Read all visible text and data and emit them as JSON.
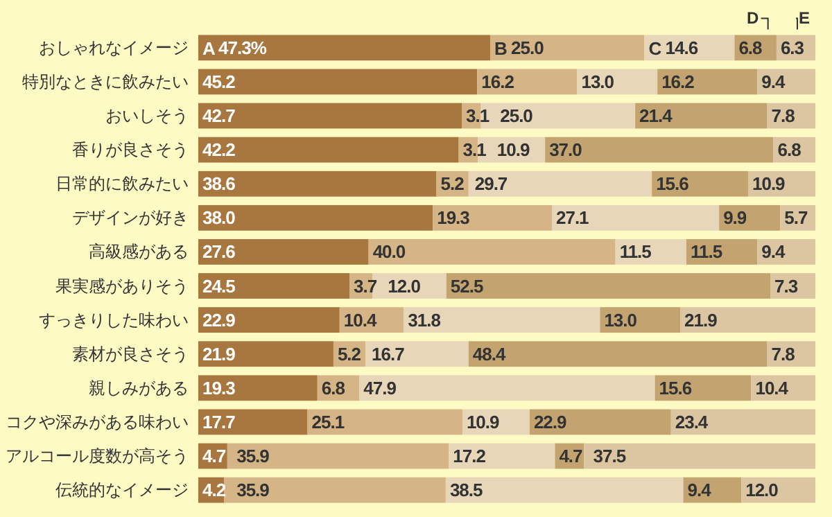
{
  "chart_data": {
    "type": "bar",
    "orientation": "horizontal",
    "stacked": true,
    "categories": [
      "おしゃれなイメージ",
      "特別なときに飲みたい",
      "おいしそう",
      "香りが良さそう",
      "日常的に飲みたい",
      "デザインが好き",
      "高級感がある",
      "果実感がありそう",
      "すっきりした味わい",
      "素材が良さそう",
      "親しみがある",
      "コクや深みがある味わい",
      "アルコール度数が高そう",
      "伝統的なイメージ"
    ],
    "series": [
      {
        "name": "A",
        "color": "#a8763f",
        "values": [
          47.3,
          45.2,
          42.7,
          42.2,
          38.6,
          38.0,
          27.6,
          24.5,
          22.9,
          21.9,
          19.3,
          17.7,
          4.7,
          4.2
        ],
        "value_labels": [
          "47.3%",
          "45.2",
          "42.7",
          "42.2",
          "38.6",
          "38.0",
          "27.6",
          "24.5",
          "22.9",
          "21.9",
          "19.3",
          "17.7",
          "4.7",
          "4.2"
        ]
      },
      {
        "name": "B",
        "color": "#d5b486",
        "values": [
          25.0,
          16.2,
          3.1,
          3.1,
          5.2,
          19.3,
          40.0,
          3.7,
          10.4,
          5.2,
          6.8,
          25.1,
          35.9,
          35.9
        ],
        "value_labels": [
          "25.0",
          "16.2",
          "3.1",
          "3.1",
          "5.2",
          "19.3",
          "40.0",
          "3.7",
          "10.4",
          "5.2",
          "6.8",
          "25.1",
          "35.9",
          "35.9"
        ]
      },
      {
        "name": "C",
        "color": "#e8d6b8",
        "values": [
          14.6,
          13.0,
          25.0,
          10.9,
          29.7,
          27.1,
          11.5,
          12.0,
          31.8,
          16.7,
          47.9,
          10.9,
          17.2,
          38.5
        ],
        "value_labels": [
          "14.6",
          "13.0",
          "25.0",
          "10.9",
          "29.7",
          "27.1",
          "11.5",
          "12.0",
          "31.8",
          "16.7",
          "47.9",
          "10.9",
          "17.2",
          "38.5"
        ]
      },
      {
        "name": "D",
        "color": "#c3a470",
        "values": [
          6.8,
          16.2,
          21.4,
          37.0,
          15.6,
          9.9,
          11.5,
          52.5,
          13.0,
          48.4,
          15.6,
          22.9,
          4.7,
          9.4
        ],
        "value_labels": [
          "6.8",
          "16.2",
          "21.4",
          "37.0",
          "15.6",
          "9.9",
          "11.5",
          "52.5",
          "13.0",
          "48.4",
          "15.6",
          "22.9",
          "4.7",
          "9.4"
        ]
      },
      {
        "name": "E",
        "color": "#dcc6a2",
        "values": [
          6.3,
          9.4,
          7.8,
          6.8,
          10.9,
          5.7,
          9.4,
          7.3,
          21.9,
          7.8,
          10.4,
          23.4,
          37.5,
          12.0
        ],
        "value_labels": [
          "6.3",
          "9.4",
          "7.8",
          "6.8",
          "10.9",
          "5.7",
          "9.4",
          "7.3",
          "21.9",
          "7.8",
          "10.4",
          "23.4",
          "37.5",
          "12.0"
        ]
      }
    ]
  }
}
